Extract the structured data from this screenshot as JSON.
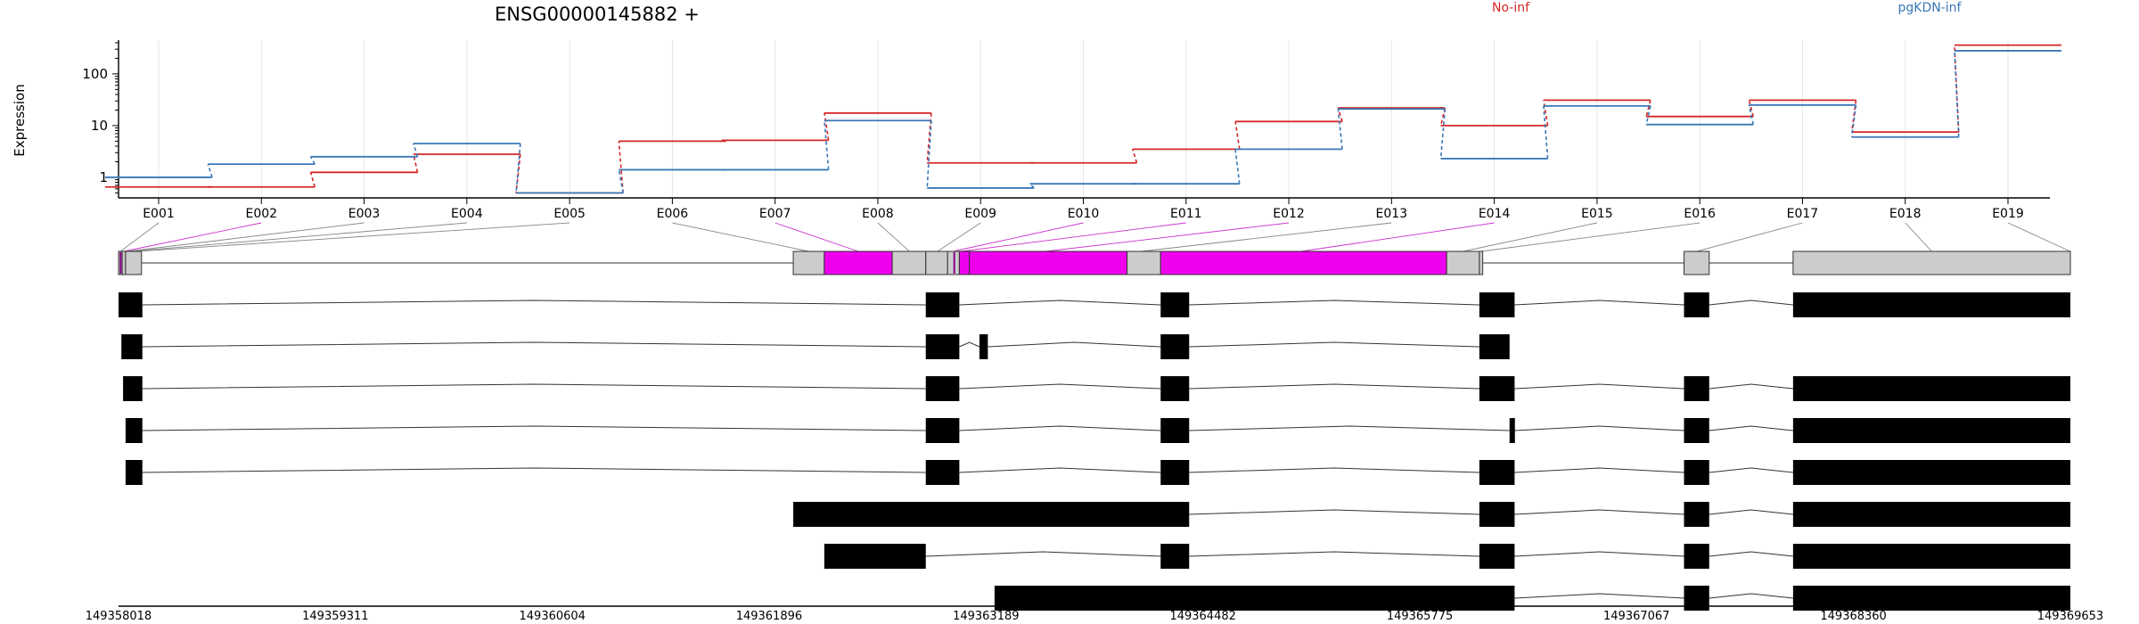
{
  "chart_data": {
    "type": "line",
    "title": "ENSG00000145882 +",
    "ylabel": "Expression",
    "yscale": "log",
    "ylim": [
      0.4,
      450
    ],
    "yticks": [
      "1",
      "10",
      "100"
    ],
    "categories": [
      "E001",
      "E002",
      "E003",
      "E004",
      "E005",
      "E006",
      "E007",
      "E008",
      "E009",
      "E010",
      "E011",
      "E012",
      "E013",
      "E014",
      "E015",
      "E016",
      "E017",
      "E018",
      "E019"
    ],
    "series": [
      {
        "name": "No-inf",
        "color": "#d62728",
        "values": [
          0.65,
          0.65,
          1.25,
          2.8,
          0.5,
          5.0,
          5.2,
          17.5,
          1.9,
          1.9,
          3.5,
          12.0,
          22.0,
          10.0,
          31.0,
          15.0,
          31.0,
          7.5,
          360.0
        ]
      },
      {
        "name": "pgKDN-inf",
        "color": "#3a78b8",
        "values": [
          1.0,
          1.8,
          2.5,
          4.5,
          0.5,
          1.4,
          1.4,
          12.5,
          0.62,
          0.75,
          0.75,
          3.5,
          21.0,
          2.3,
          24.0,
          10.5,
          25.0,
          6.0,
          280.0
        ]
      }
    ],
    "grid": "vertical",
    "gene_axis": {
      "start": 149358018,
      "end": 149369653,
      "tick_labels": [
        "149358018",
        "149359311",
        "149360604",
        "149361896",
        "149363189",
        "149364482",
        "149365775",
        "149367067",
        "149368360",
        "149369653"
      ]
    },
    "exon_bins": [
      {
        "id": "E001",
        "start": 149358018,
        "end": 149358040,
        "significant": false
      },
      {
        "id": "E002",
        "start": 149358040,
        "end": 149358060,
        "significant": true
      },
      {
        "id": "E003",
        "start": 149358060,
        "end": 149358080,
        "significant": false
      },
      {
        "id": "E004",
        "start": 149358080,
        "end": 149358100,
        "significant": false
      },
      {
        "id": "E005",
        "start": 149358100,
        "end": 149358155,
        "significant": false
      },
      {
        "id": "E006",
        "start": 149362040,
        "end": 149362225,
        "significant": false
      },
      {
        "id": "E007",
        "start": 149362225,
        "end": 149362630,
        "significant": true
      },
      {
        "id": "E008",
        "start": 149362630,
        "end": 149362835,
        "significant": false
      },
      {
        "id": "E009",
        "start": 149362835,
        "end": 149362965,
        "significant": false
      },
      {
        "id": "E010",
        "start": 149362965,
        "end": 149363020,
        "significant": true
      },
      {
        "id": "E011",
        "start": 149363020,
        "end": 149363060,
        "significant": true
      },
      {
        "id": "E012",
        "start": 149363060,
        "end": 149364030,
        "significant": true
      },
      {
        "id": "E013",
        "start": 149364030,
        "end": 149364200,
        "significant": false
      },
      {
        "id": "E014",
        "start": 149364200,
        "end": 149365935,
        "significant": true
      },
      {
        "id": "E015",
        "start": 149365935,
        "end": 149366130,
        "significant": false
      },
      {
        "id": "E016",
        "start": 149366130,
        "end": 149366150,
        "significant": false
      },
      {
        "id": "E017",
        "start": 149367350,
        "end": 149367500,
        "significant": false
      },
      {
        "id": "E018",
        "start": 149368000,
        "end": 149369653,
        "significant": false
      },
      {
        "id": "E019",
        "start": 149369653,
        "end": 149369653,
        "significant": false
      }
    ],
    "transcripts": [
      [
        [
          149358018,
          149358160
        ],
        [
          149362830,
          149363030
        ],
        [
          149364230,
          149364400
        ],
        [
          149366130,
          149366340
        ],
        [
          149367350,
          149367500
        ],
        [
          149368000,
          149369653
        ]
      ],
      [
        [
          149358035,
          149358160
        ],
        [
          149362830,
          149363030
        ],
        [
          149363150,
          149363200
        ],
        [
          149364230,
          149364400
        ],
        [
          149366130,
          149366310
        ]
      ],
      [
        [
          149358045,
          149358160
        ],
        [
          149362830,
          149363030
        ],
        [
          149364230,
          149364400
        ],
        [
          149366130,
          149366340
        ],
        [
          149367350,
          149367500
        ],
        [
          149368000,
          149369653
        ]
      ],
      [
        [
          149358060,
          149358160
        ],
        [
          149362830,
          149363030
        ],
        [
          149364230,
          149364400
        ],
        [
          149366310,
          149366340
        ],
        [
          149367350,
          149367500
        ],
        [
          149368000,
          149369653
        ]
      ],
      [
        [
          149358060,
          149358160
        ],
        [
          149362830,
          149363030
        ],
        [
          149364230,
          149364400
        ],
        [
          149366130,
          149366340
        ],
        [
          149367350,
          149367500
        ],
        [
          149368000,
          149369653
        ]
      ],
      [
        [
          149362040,
          149364400
        ],
        [
          149366130,
          149366340
        ],
        [
          149367350,
          149367500
        ],
        [
          149368000,
          149369653
        ]
      ],
      [
        [
          149362225,
          149362830
        ],
        [
          149364230,
          149364400
        ],
        [
          149366130,
          149366340
        ],
        [
          149367350,
          149367500
        ],
        [
          149368000,
          149369653
        ]
      ],
      [
        [
          149363240,
          149366340
        ],
        [
          149367350,
          149367500
        ],
        [
          149368000,
          149369653
        ]
      ]
    ],
    "significant_color": "#ee00ee",
    "exon_color": "#cccccc"
  }
}
